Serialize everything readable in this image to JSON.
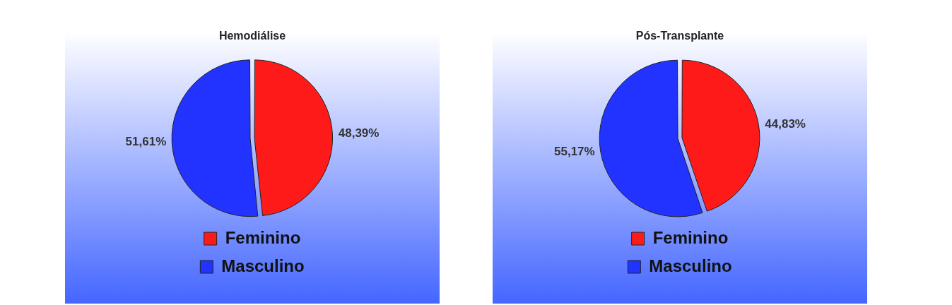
{
  "chart_data": [
    {
      "type": "pie",
      "title": "Hemodiálise",
      "categories": [
        "Feminino",
        "Masculino"
      ],
      "values": [
        48.39,
        51.61
      ],
      "colors": [
        "#ff1a1a",
        "#2233ff"
      ],
      "value_labels": [
        "48,39%",
        "51,61%"
      ],
      "legend": "bottom"
    },
    {
      "type": "pie",
      "title": "Pós-Transplante",
      "categories": [
        "Feminino",
        "Masculino"
      ],
      "values": [
        44.83,
        55.17
      ],
      "colors": [
        "#ff1a1a",
        "#2233ff"
      ],
      "value_labels": [
        "44,83%",
        "55,17%"
      ],
      "legend": "bottom"
    }
  ]
}
